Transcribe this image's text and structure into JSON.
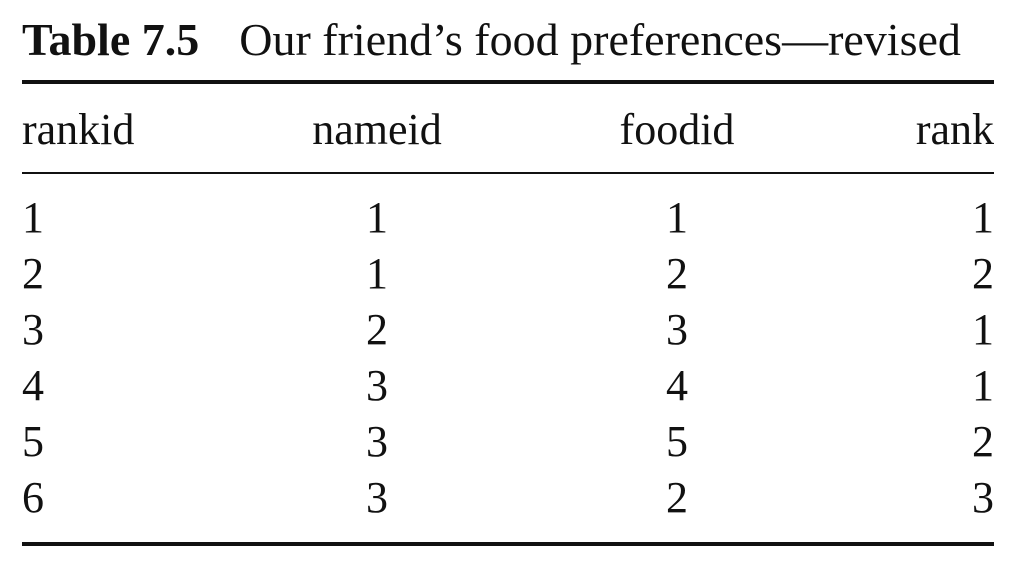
{
  "table": {
    "label": "Table 7.5",
    "title": "Our friend’s food preferences—revised",
    "columns": [
      "rankid",
      "nameid",
      "foodid",
      "rank"
    ],
    "rows": [
      [
        "1",
        "1",
        "1",
        "1"
      ],
      [
        "2",
        "1",
        "2",
        "2"
      ],
      [
        "3",
        "2",
        "3",
        "1"
      ],
      [
        "4",
        "3",
        "4",
        "1"
      ],
      [
        "5",
        "3",
        "5",
        "2"
      ],
      [
        "6",
        "3",
        "2",
        "3"
      ]
    ]
  }
}
